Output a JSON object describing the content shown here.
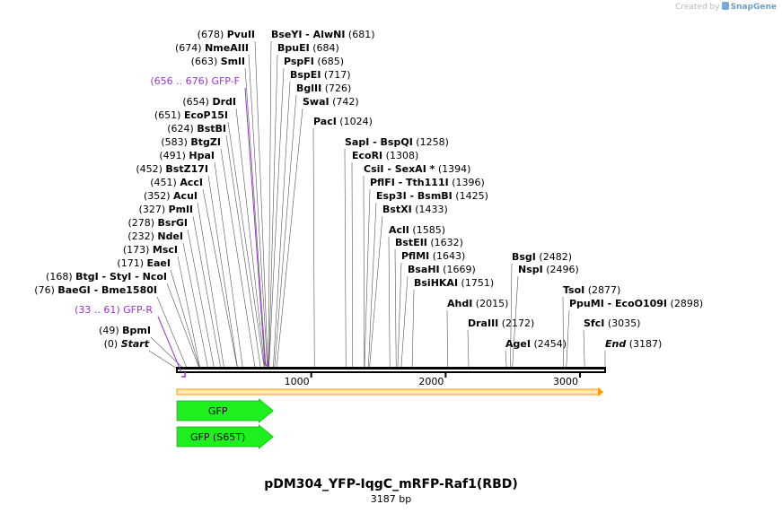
{
  "credit": {
    "prefix": "Created by",
    "brand": "SnapGene"
  },
  "plasmid": {
    "name": "pDM304_YFP-IqgC_mRFP-Raf1(RBD)",
    "length_label": "3187 bp",
    "length_bp": 3187
  },
  "colors": {
    "primer": "#9933cc",
    "feature": "#1ef01e",
    "orf_fill": "#ffe8b0",
    "orf_border": "#ff9900"
  },
  "ruler": {
    "ticks": [
      1000,
      2000,
      3000
    ]
  },
  "sites": [
    {
      "pos": "(0)",
      "name": "Start",
      "italic": true,
      "x": 0
    },
    {
      "pos": "(49)",
      "name": "BpmI",
      "x": 49
    },
    {
      "pos": "(76)",
      "name": "BaeGI  -  Bme1580I",
      "x": 76
    },
    {
      "pos": "(168)",
      "name": "BtgI  -  StyI  -  NcoI",
      "x": 168
    },
    {
      "pos": "(171)",
      "name": "EaeI",
      "x": 171
    },
    {
      "pos": "(173)",
      "name": "MscI",
      "x": 173
    },
    {
      "pos": "(232)",
      "name": "NdeI",
      "x": 232
    },
    {
      "pos": "(278)",
      "name": "BsrGI",
      "x": 278
    },
    {
      "pos": "(327)",
      "name": "PmlI",
      "x": 327
    },
    {
      "pos": "(352)",
      "name": "AcuI",
      "x": 352
    },
    {
      "pos": "(451)",
      "name": "AccI",
      "x": 451
    },
    {
      "pos": "(452)",
      "name": "BstZ17I",
      "x": 452
    },
    {
      "pos": "(491)",
      "name": "HpaI",
      "x": 491
    },
    {
      "pos": "(583)",
      "name": "BtgZI",
      "x": 583
    },
    {
      "pos": "(624)",
      "name": "BstBI",
      "x": 624
    },
    {
      "pos": "(651)",
      "name": "EcoP15I",
      "x": 651
    },
    {
      "pos": "(654)",
      "name": "DrdI",
      "x": 654
    },
    {
      "pos": "(663)",
      "name": "SmlI",
      "x": 663
    },
    {
      "pos": "(674)",
      "name": "NmeAIII",
      "x": 674
    },
    {
      "pos": "(678)",
      "name": "PvuII",
      "x": 678
    },
    {
      "pos": "(681)",
      "name": "BseYI  -  AlwNI",
      "x": 681
    },
    {
      "pos": "(684)",
      "name": "BpuEI",
      "x": 684
    },
    {
      "pos": "(685)",
      "name": "PspFI",
      "x": 685
    },
    {
      "pos": "(717)",
      "name": "BspEI",
      "x": 717
    },
    {
      "pos": "(726)",
      "name": "BglII",
      "x": 726
    },
    {
      "pos": "(742)",
      "name": "SwaI",
      "x": 742
    },
    {
      "pos": "(1024)",
      "name": "PacI",
      "x": 1024
    },
    {
      "pos": "(1258)",
      "name": "SapI  -  BspQI",
      "x": 1258
    },
    {
      "pos": "(1308)",
      "name": "EcoRI",
      "x": 1308
    },
    {
      "pos": "(1394)",
      "name": "CsiI  -  SexAI *",
      "x": 1394
    },
    {
      "pos": "(1396)",
      "name": "PflFI  -  Tth111I",
      "x": 1396
    },
    {
      "pos": "(1425)",
      "name": "Esp3I  -  BsmBI",
      "x": 1425
    },
    {
      "pos": "(1433)",
      "name": "BstXI",
      "x": 1433
    },
    {
      "pos": "(1585)",
      "name": "AclI",
      "x": 1585
    },
    {
      "pos": "(1632)",
      "name": "BstEII",
      "x": 1632
    },
    {
      "pos": "(1643)",
      "name": "PflMI",
      "x": 1643
    },
    {
      "pos": "(1669)",
      "name": "BsaHI",
      "x": 1669
    },
    {
      "pos": "(1751)",
      "name": "BsiHKAI",
      "x": 1751
    },
    {
      "pos": "(2015)",
      "name": "AhdI",
      "x": 2015
    },
    {
      "pos": "(2172)",
      "name": "DraIII",
      "x": 2172
    },
    {
      "pos": "(2454)",
      "name": "AgeI",
      "x": 2454
    },
    {
      "pos": "(2482)",
      "name": "BsgI",
      "x": 2482
    },
    {
      "pos": "(2496)",
      "name": "NspI",
      "x": 2496
    },
    {
      "pos": "(2877)",
      "name": "TsoI",
      "x": 2877
    },
    {
      "pos": "(2898)",
      "name": "PpuMI  -  EcoO109I",
      "x": 2898
    },
    {
      "pos": "(3035)",
      "name": "SfcI",
      "x": 3035
    },
    {
      "pos": "(3187)",
      "name": "End",
      "italic": true,
      "x": 3187
    }
  ],
  "primers": [
    {
      "pos": "(656 .. 676)",
      "name": "GFP-F",
      "start": 656,
      "end": 676,
      "direction": "forward"
    },
    {
      "pos": "(33 .. 61)",
      "name": "GFP-R",
      "start": 33,
      "end": 61,
      "direction": "reverse"
    }
  ],
  "features": [
    {
      "name": "GFP",
      "start": 1,
      "end": 717
    },
    {
      "name": "GFP (S65T)",
      "start": 1,
      "end": 717
    }
  ],
  "orf": {
    "start": 1,
    "end": 3187
  }
}
